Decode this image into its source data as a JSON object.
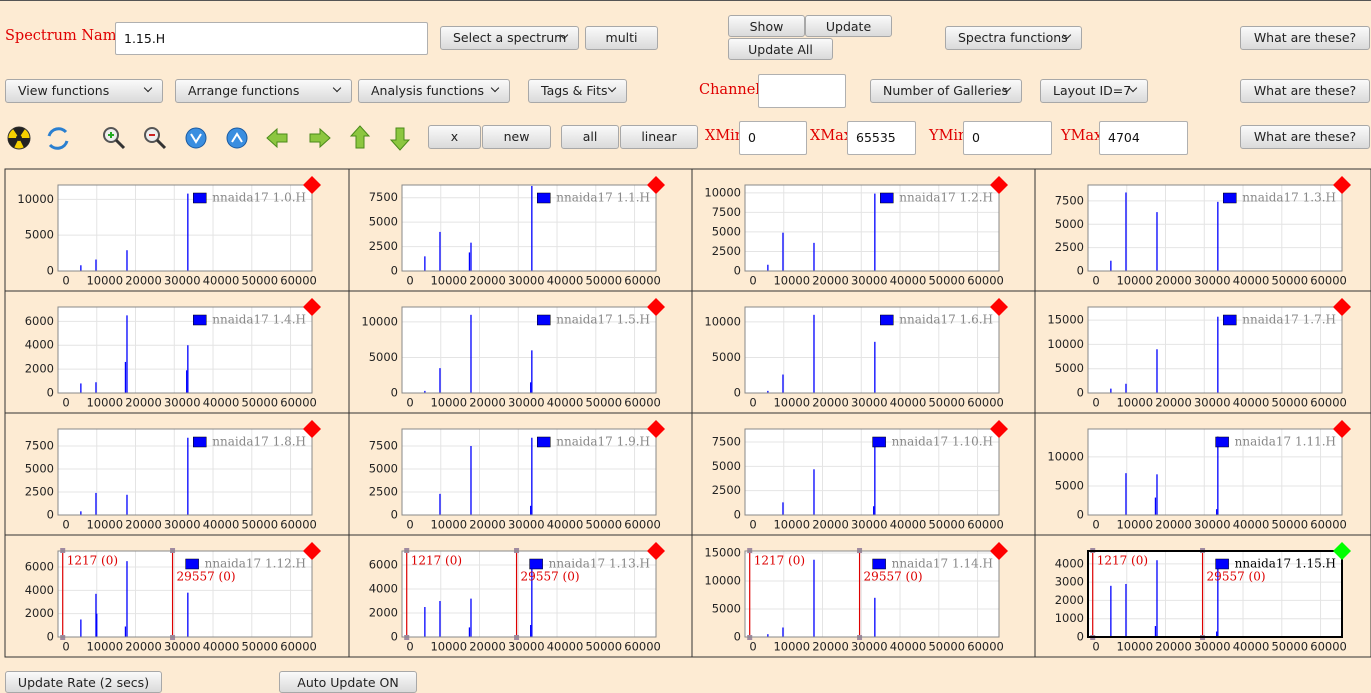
{
  "toolbar": {
    "spectrum_label": "Spectrum Name:",
    "spectrum_value": "1.15.H",
    "select_spectrum": "Select a spectrum",
    "multi": "multi",
    "show": "Show",
    "update": "Update",
    "update_all": "Update All",
    "spectra_functions": "Spectra functions",
    "help": [
      "What are these?",
      "What are these?",
      "What are these?"
    ],
    "view_functions": "View functions",
    "arrange_functions": "Arrange functions",
    "analysis_functions": "Analysis functions",
    "tags_fits": "Tags & Fits",
    "channel_label": "Channel:",
    "number_of_galleries": "Number of Galleries",
    "layout_id": "Layout ID=7",
    "x_button": "x",
    "new": "new",
    "all": "all",
    "linear": "linear",
    "xmin_label": "XMin",
    "xmin": 0,
    "xmax_label": "XMax",
    "xmax": 65535,
    "ymin_label": "YMin",
    "ymin": 0,
    "ymax_label": "YMax",
    "ymax": 4704
  },
  "galleries": {
    "xlim": [
      0,
      65535
    ],
    "xticks": [
      0,
      10000,
      20000,
      30000,
      40000,
      50000,
      60000
    ],
    "peak_color": "#0000ff",
    "marker_color": "#dd0000",
    "panels": [
      {
        "legend": "nnaida17 1.0.H",
        "ylim": [
          0,
          12000
        ],
        "yticks": [
          0,
          5000,
          10000
        ],
        "peaks_x": [
          5900,
          9800,
          17800,
          33500
        ],
        "peaks_y": [
          800,
          1600,
          2900,
          10800
        ],
        "status": "#ff0000"
      },
      {
        "legend": "nnaida17 1.1.H",
        "ylim": [
          0,
          8800
        ],
        "yticks": [
          0,
          2500,
          5000,
          7500
        ],
        "peaks_x": [
          5900,
          9800,
          17400,
          17800,
          33500
        ],
        "peaks_y": [
          1500,
          4000,
          1900,
          2900,
          8700
        ],
        "status": "#ff0000"
      },
      {
        "legend": "nnaida17 1.2.H",
        "ylim": [
          0,
          11000
        ],
        "yticks": [
          0,
          2500,
          5000,
          7500,
          10000
        ],
        "peaks_x": [
          5900,
          9800,
          17800,
          33500
        ],
        "peaks_y": [
          800,
          4900,
          3600,
          9900
        ],
        "status": "#ff0000"
      },
      {
        "legend": "nnaida17 1.3.H",
        "ylim": [
          0,
          9200
        ],
        "yticks": [
          0,
          2500,
          5000,
          7500
        ],
        "peaks_x": [
          5900,
          9800,
          17800,
          33500
        ],
        "peaks_y": [
          1100,
          8400,
          6300,
          7400
        ],
        "status": "#ff0000"
      },
      {
        "legend": "nnaida17 1.4.H",
        "ylim": [
          0,
          7200
        ],
        "yticks": [
          0,
          2000,
          4000,
          6000
        ],
        "peaks_x": [
          5900,
          9800,
          17400,
          17800,
          33200,
          33500
        ],
        "peaks_y": [
          800,
          900,
          2600,
          6500,
          1900,
          4000
        ],
        "status": "#ff0000"
      },
      {
        "legend": "nnaida17 1.5.H",
        "ylim": [
          0,
          12100
        ],
        "yticks": [
          0,
          5000,
          10000
        ],
        "peaks_x": [
          5900,
          9800,
          17800,
          33200,
          33500
        ],
        "peaks_y": [
          300,
          3500,
          11000,
          1500,
          6000
        ],
        "status": "#ff0000"
      },
      {
        "legend": "nnaida17 1.6.H",
        "ylim": [
          0,
          12100
        ],
        "yticks": [
          0,
          5000,
          10000
        ],
        "peaks_x": [
          5900,
          9800,
          17800,
          33500
        ],
        "peaks_y": [
          300,
          2600,
          11000,
          7200
        ],
        "status": "#ff0000"
      },
      {
        "legend": "nnaida17 1.7.H",
        "ylim": [
          0,
          17700
        ],
        "yticks": [
          0,
          5000,
          10000,
          15000
        ],
        "peaks_x": [
          5900,
          9800,
          17800,
          33500
        ],
        "peaks_y": [
          900,
          1900,
          9000,
          15700
        ],
        "status": "#ff0000"
      },
      {
        "legend": "nnaida17 1.8.H",
        "ylim": [
          0,
          9350
        ],
        "yticks": [
          0,
          2500,
          5000,
          7500
        ],
        "peaks_x": [
          5900,
          9800,
          17800,
          33500
        ],
        "peaks_y": [
          400,
          2400,
          2200,
          8400
        ],
        "status": "#ff0000"
      },
      {
        "legend": "nnaida17 1.9.H",
        "ylim": [
          0,
          9350
        ],
        "yticks": [
          0,
          2500,
          5000,
          7500
        ],
        "peaks_x": [
          9800,
          17800,
          33200,
          33500
        ],
        "peaks_y": [
          2300,
          7500,
          1000,
          8400
        ],
        "status": "#ff0000"
      },
      {
        "legend": "nnaida17 1.10.H",
        "ylim": [
          0,
          8840
        ],
        "yticks": [
          0,
          2500,
          5000,
          7500
        ],
        "peaks_x": [
          9800,
          17800,
          33200,
          33500
        ],
        "peaks_y": [
          1300,
          4700,
          900,
          8000
        ],
        "status": "#ff0000"
      },
      {
        "legend": "nnaida17 1.11.H",
        "ylim": [
          0,
          14800
        ],
        "yticks": [
          0,
          5000,
          10000
        ],
        "peaks_x": [
          9800,
          17400,
          17800,
          33200,
          33500
        ],
        "peaks_y": [
          7200,
          3000,
          7000,
          1000,
          13500
        ],
        "status": "#ff0000"
      },
      {
        "legend": "nnaida17 1.12.H",
        "ylim": [
          0,
          7370
        ],
        "yticks": [
          0,
          2000,
          4000,
          6000
        ],
        "peaks_x": [
          5900,
          9800,
          10000,
          17400,
          17800,
          33500
        ],
        "peaks_y": [
          1500,
          3700,
          2000,
          900,
          6500,
          3800
        ],
        "status": "#ff0000",
        "markers": [
          {
            "x": 1217,
            "label": "1217 (0)"
          },
          {
            "x": 29557,
            "label": "29557 (0)"
          }
        ]
      },
      {
        "legend": "nnaida17 1.13.H",
        "ylim": [
          0,
          7170
        ],
        "yticks": [
          0,
          2000,
          4000,
          6000
        ],
        "peaks_x": [
          5900,
          9800,
          17400,
          17800,
          33200,
          33500
        ],
        "peaks_y": [
          2500,
          3000,
          800,
          3200,
          1000,
          6300
        ],
        "status": "#ff0000",
        "markers": [
          {
            "x": 1217,
            "label": "1217 (0)"
          },
          {
            "x": 29557,
            "label": "29557 (0)"
          }
        ]
      },
      {
        "legend": "nnaida17 1.14.H",
        "ylim": [
          0,
          15360
        ],
        "yticks": [
          0,
          5000,
          10000,
          15000
        ],
        "peaks_x": [
          5900,
          9800,
          17800,
          33500
        ],
        "peaks_y": [
          500,
          1700,
          13800,
          7000
        ],
        "status": "#ff0000",
        "markers": [
          {
            "x": 1217,
            "label": "1217 (0)"
          },
          {
            "x": 29557,
            "label": "29557 (0)"
          }
        ]
      },
      {
        "legend": "nnaida17 1.15.H",
        "ylim": [
          0,
          4704
        ],
        "yticks": [
          0,
          1000,
          2000,
          3000,
          4000
        ],
        "peaks_x": [
          5900,
          9800,
          17400,
          17800,
          33200,
          33500
        ],
        "peaks_y": [
          2800,
          2900,
          600,
          4200,
          300,
          4100
        ],
        "status": "#00ff00",
        "selected": true,
        "markers": [
          {
            "x": 1217,
            "label": "1217 (0)"
          },
          {
            "x": 29557,
            "label": "29557 (0)"
          }
        ]
      }
    ]
  },
  "footer": {
    "update_rate": "Update Rate (2 secs)",
    "auto_update": "Auto Update ON"
  }
}
